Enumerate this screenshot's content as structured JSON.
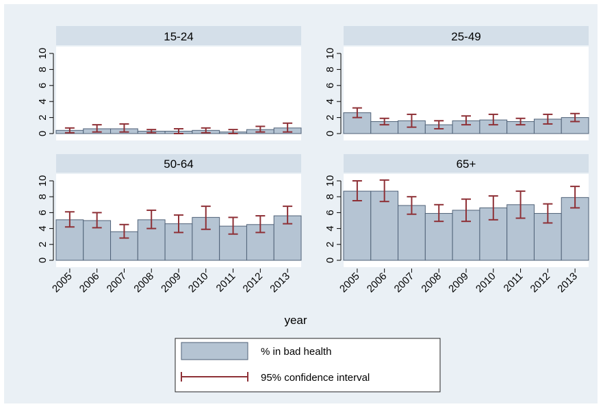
{
  "chart_data": [
    {
      "type": "bar",
      "title": "15-24",
      "categories": [
        "2005",
        "2006",
        "2007",
        "2008",
        "2009",
        "2010",
        "2011",
        "2012",
        "2013"
      ],
      "series": [
        {
          "name": "% in bad health",
          "color": "#b5c4d3",
          "values": [
            0.4,
            0.6,
            0.6,
            0.3,
            0.3,
            0.4,
            0.2,
            0.5,
            0.7
          ],
          "ci_low": [
            0.1,
            0.2,
            0.2,
            0.1,
            0.0,
            0.1,
            0.0,
            0.2,
            0.2
          ],
          "ci_high": [
            0.7,
            1.1,
            1.2,
            0.5,
            0.6,
            0.7,
            0.5,
            0.9,
            1.3
          ]
        }
      ],
      "ylim": [
        0,
        10
      ],
      "yticks": [
        0,
        2,
        4,
        6,
        8,
        10
      ]
    },
    {
      "type": "bar",
      "title": "25-49",
      "categories": [
        "2005",
        "2006",
        "2007",
        "2008",
        "2009",
        "2010",
        "2011",
        "2012",
        "2013"
      ],
      "series": [
        {
          "name": "% in bad health",
          "color": "#b5c4d3",
          "values": [
            2.6,
            1.5,
            1.6,
            1.1,
            1.6,
            1.7,
            1.5,
            1.8,
            2.0
          ],
          "ci_low": [
            2.0,
            1.1,
            0.8,
            0.6,
            1.1,
            1.1,
            1.1,
            1.2,
            1.5
          ],
          "ci_high": [
            3.2,
            1.9,
            2.4,
            1.6,
            2.2,
            2.4,
            1.9,
            2.4,
            2.5
          ]
        }
      ],
      "ylim": [
        0,
        10
      ],
      "yticks": [
        0,
        2,
        4,
        6,
        8,
        10
      ]
    },
    {
      "type": "bar",
      "title": "50-64",
      "categories": [
        "2005",
        "2006",
        "2007",
        "2008",
        "2009",
        "2010",
        "2011",
        "2012",
        "2013"
      ],
      "series": [
        {
          "name": "% in bad health",
          "color": "#b5c4d3",
          "values": [
            5.1,
            5.0,
            3.6,
            5.1,
            4.6,
            5.4,
            4.3,
            4.5,
            5.6
          ],
          "ci_low": [
            4.2,
            4.1,
            2.8,
            4.0,
            3.5,
            3.9,
            3.3,
            3.5,
            4.6
          ],
          "ci_high": [
            6.1,
            6.0,
            4.5,
            6.3,
            5.7,
            6.8,
            5.4,
            5.6,
            6.8
          ]
        }
      ],
      "ylim": [
        0,
        10
      ],
      "yticks": [
        0,
        2,
        4,
        6,
        8,
        10
      ]
    },
    {
      "type": "bar",
      "title": "65+",
      "categories": [
        "2005",
        "2006",
        "2007",
        "2008",
        "2009",
        "2010",
        "2011",
        "2012",
        "2013"
      ],
      "series": [
        {
          "name": "% in bad health",
          "color": "#b5c4d3",
          "values": [
            8.7,
            8.7,
            6.9,
            5.9,
            6.3,
            6.6,
            7.0,
            5.9,
            7.9
          ],
          "ci_low": [
            7.5,
            7.4,
            5.8,
            4.9,
            4.9,
            5.1,
            5.3,
            4.7,
            6.6
          ],
          "ci_high": [
            10.0,
            10.1,
            8.0,
            7.0,
            7.7,
            8.1,
            8.7,
            7.1,
            9.3
          ]
        }
      ],
      "ylim": [
        0,
        10
      ],
      "yticks": [
        0,
        2,
        4,
        6,
        8,
        10
      ]
    }
  ],
  "x_label": "year",
  "legend": {
    "bar": "% in bad health",
    "interval": "95% confidence interval",
    "interval_color": "#8e3036"
  }
}
